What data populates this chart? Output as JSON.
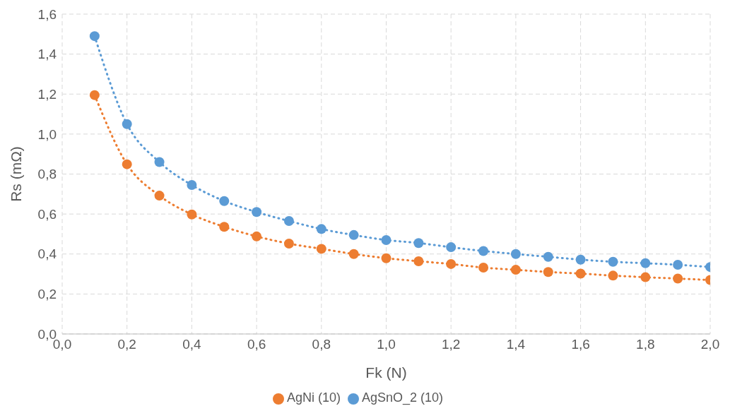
{
  "chart_data": {
    "type": "line",
    "xlabel": "Fk (N)",
    "ylabel": "Rs (mΩ)",
    "x": [
      0.1,
      0.2,
      0.3,
      0.4,
      0.5,
      0.6,
      0.7,
      0.8,
      0.9,
      1.0,
      1.1,
      1.2,
      1.3,
      1.4,
      1.5,
      1.6,
      1.7,
      1.8,
      1.9,
      2.0
    ],
    "series": [
      {
        "name": "AgSnO_2 (10)",
        "color": "#5b9bd5",
        "values": [
          1.49,
          1.05,
          0.86,
          0.745,
          0.665,
          0.61,
          0.565,
          0.525,
          0.495,
          0.47,
          0.455,
          0.434,
          0.415,
          0.4,
          0.386,
          0.372,
          0.361,
          0.354,
          0.346,
          0.335
        ]
      },
      {
        "name": "AgNi (10)",
        "color": "#ed7d31",
        "values": [
          1.195,
          0.849,
          0.692,
          0.598,
          0.536,
          0.488,
          0.452,
          0.426,
          0.4,
          0.379,
          0.364,
          0.35,
          0.332,
          0.321,
          0.31,
          0.302,
          0.292,
          0.284,
          0.277,
          0.27
        ]
      }
    ],
    "xlim": [
      0,
      2
    ],
    "xticks": [
      {
        "value": 0,
        "label": "0,0"
      },
      {
        "value": 0.2,
        "label": "0,2"
      },
      {
        "value": 0.4,
        "label": "0,4"
      },
      {
        "value": 0.6,
        "label": "0,6"
      },
      {
        "value": 0.8,
        "label": "0,8"
      },
      {
        "value": 1,
        "label": "1,0"
      },
      {
        "value": 1.2,
        "label": "1,2"
      },
      {
        "value": 1.4,
        "label": "1,4"
      },
      {
        "value": 1.6,
        "label": "1,6"
      },
      {
        "value": 1.8,
        "label": "1,8"
      },
      {
        "value": 2,
        "label": "2,0"
      }
    ],
    "ylim": [
      0,
      1.6
    ],
    "yticks": [
      {
        "value": 0,
        "label": "0,0"
      },
      {
        "value": 0.2,
        "label": "0,2"
      },
      {
        "value": 0.4,
        "label": "0,4"
      },
      {
        "value": 0.6,
        "label": "0,6"
      },
      {
        "value": 0.8,
        "label": "0,8"
      },
      {
        "value": 1,
        "label": "1,0"
      },
      {
        "value": 1.2,
        "label": "1,2"
      },
      {
        "value": 1.4,
        "label": "1,4"
      },
      {
        "value": 1.6,
        "label": "1,6"
      }
    ],
    "grid": true,
    "legend": "bottom",
    "marker": "circle",
    "line_style": "dotted"
  }
}
